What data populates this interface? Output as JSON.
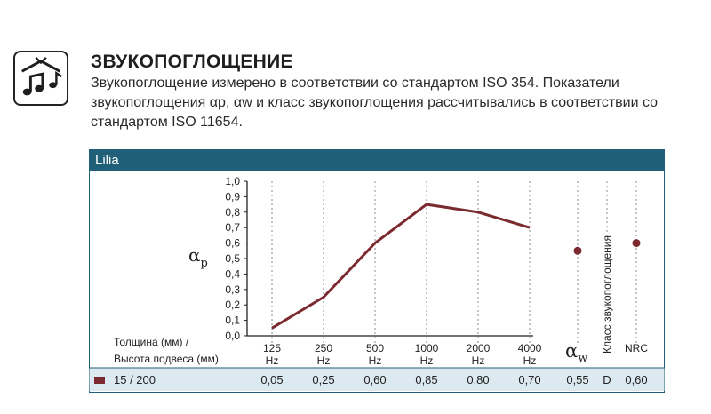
{
  "header": {
    "title": "ЗВУКОПОГЛОЩЕНИЕ",
    "description": "Звукопоглощение измерено в соответствии со стандартом ISO 354. Показатели звукопоглощения αp, αw и класс звукопоглощения рассчитывались в соответствии со стандартом ISO 11654.",
    "icon": "music-notes-icon"
  },
  "panel": {
    "product": "Lilia",
    "accent_color": "#1f5f77",
    "line_color": "#7b2b30"
  },
  "chart_data": {
    "type": "line",
    "ylabel": "αp",
    "ylabel_main": "α",
    "ylabel_sub": "p",
    "ylim": [
      0,
      1.0
    ],
    "y_ticks": [
      "0,0",
      "0,1",
      "0,2",
      "0,3",
      "0,4",
      "0,5",
      "0,6",
      "0,7",
      "0,8",
      "0,9",
      "1,0"
    ],
    "categories": [
      "125 Hz",
      "250 Hz",
      "500 Hz",
      "1000 Hz",
      "2000 Hz",
      "4000 Hz"
    ],
    "category_numbers": [
      "125",
      "250",
      "500",
      "1000",
      "2000",
      "4000"
    ],
    "category_unit": "Hz",
    "series": [
      {
        "values": [
          0.05,
          0.25,
          0.6,
          0.85,
          0.8,
          0.7
        ]
      }
    ],
    "aw": {
      "label_main": "α",
      "label_sub": "w",
      "value": 0.55
    },
    "nrc": {
      "label": "NRC",
      "value": 0.6
    },
    "class_label": "Класс звукопоглощения",
    "grid": "vertical dashed"
  },
  "table": {
    "header_line1": "Толщина (мм) /",
    "header_line2": "Высота подвеса (мм)",
    "row_label": "15 / 200",
    "values": [
      "0,05",
      "0,25",
      "0,60",
      "0,85",
      "0,80",
      "0,70",
      "0,55",
      "D",
      "0,60"
    ]
  }
}
